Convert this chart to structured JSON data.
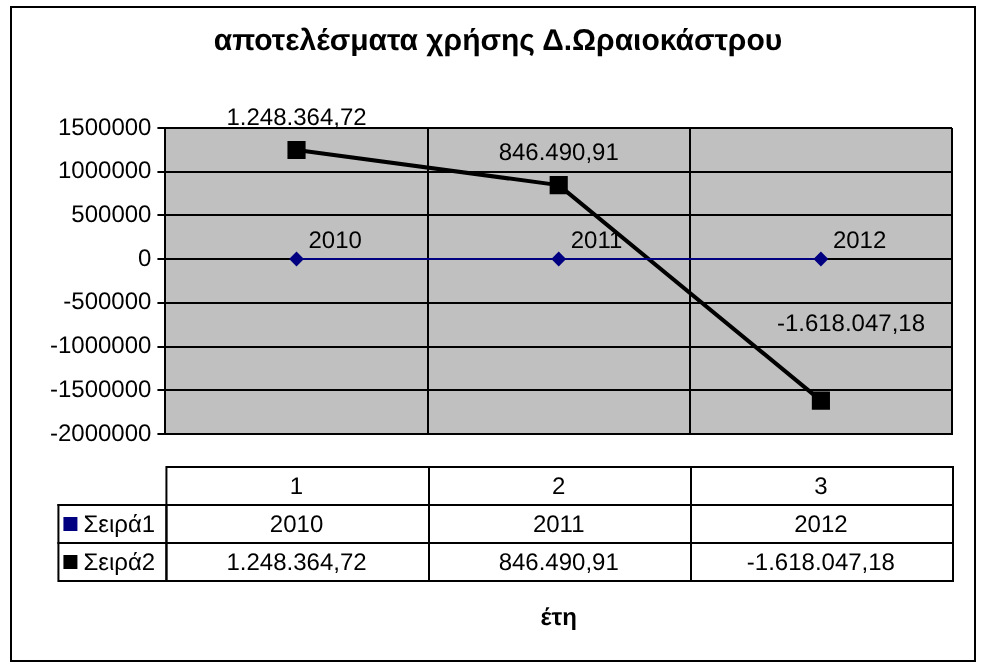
{
  "chart_data": {
    "type": "line",
    "title": "αποτελέσματα χρήσης Δ.Ωραιοκάστρου",
    "xlabel": "έτη",
    "categories": [
      "1",
      "2",
      "3"
    ],
    "series": [
      {
        "name": "Σειρά1",
        "color": "#000080",
        "values": [
          2010,
          2011,
          2012
        ],
        "marker": "diamond",
        "value_labels": [
          "2010",
          "2011",
          "2012"
        ]
      },
      {
        "name": "Σειρά2",
        "color": "#000000",
        "values": [
          1248364.72,
          846490.91,
          -1618047.18
        ],
        "marker": "square",
        "value_labels": [
          "1.248.364,72",
          "846.490,91",
          "-1.618.047,18"
        ]
      }
    ],
    "ylim": [
      -2000000,
      1500000
    ],
    "yticks": [
      -2000000,
      -1500000,
      -1000000,
      -500000,
      0,
      500000,
      1000000,
      1500000
    ],
    "grid": true,
    "legend": "bottom"
  }
}
